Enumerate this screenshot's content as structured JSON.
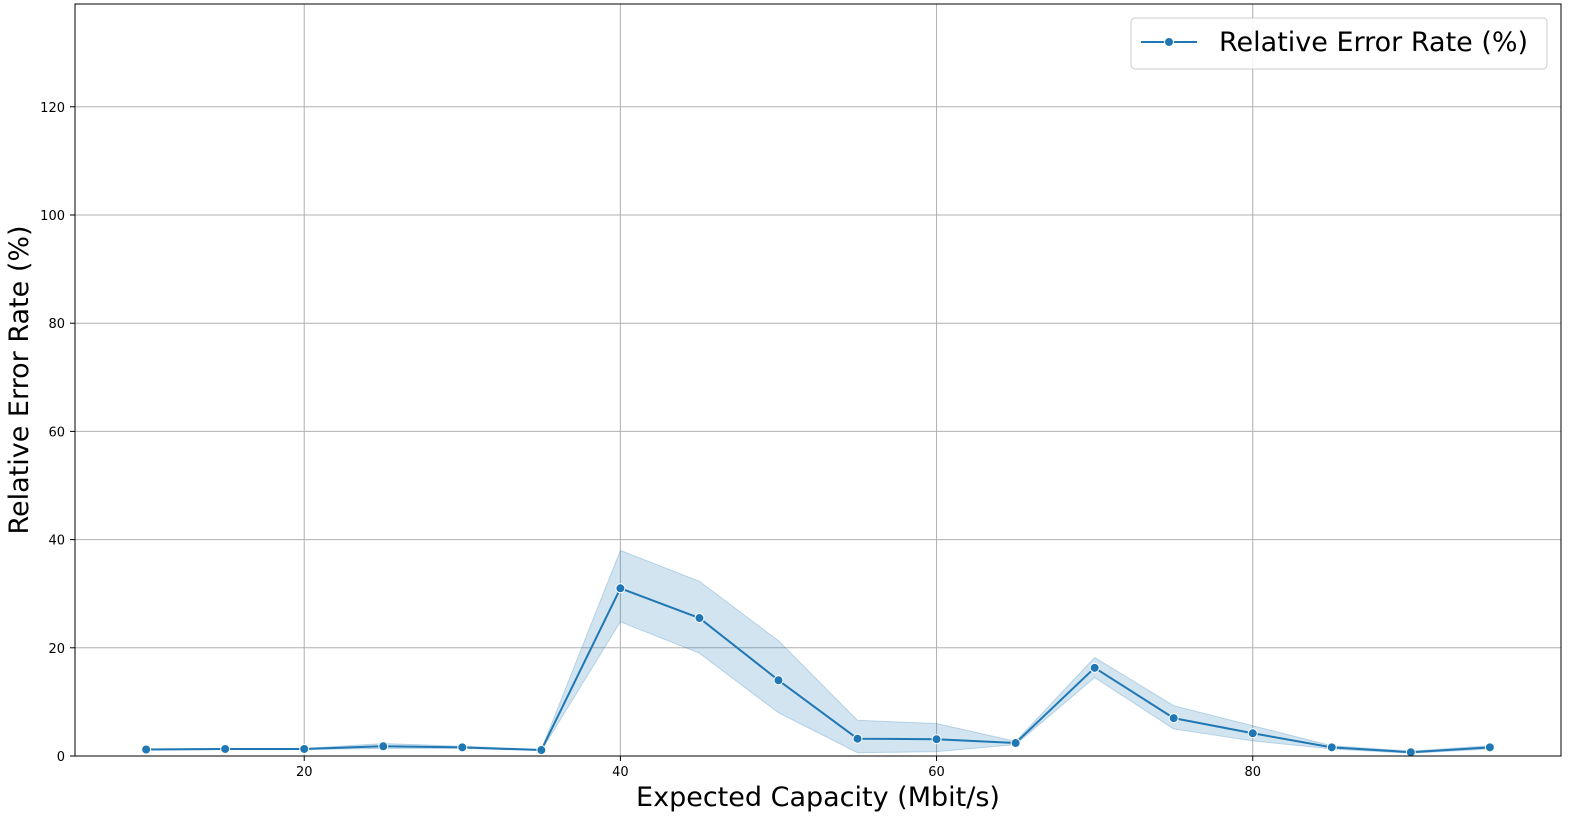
{
  "chart_data": {
    "type": "line",
    "xlabel": "Expected Capacity (Mbit/s)",
    "ylabel": "Relative Error Rate (%)",
    "xlim": [
      5.5,
      99.5
    ],
    "ylim": [
      0,
      139
    ],
    "xticks": [
      20,
      40,
      60,
      80
    ],
    "yticks": [
      0,
      20,
      40,
      60,
      80,
      100,
      120
    ],
    "grid": true,
    "legend_position": "top-right",
    "colors": {
      "line": "#1f77b4",
      "band": "#1f77b4",
      "grid": "#b0b0b0"
    },
    "series": [
      {
        "name": "Relative Error Rate (%)",
        "x": [
          10,
          15,
          20,
          25,
          30,
          35,
          40,
          45,
          50,
          55,
          60,
          65,
          70,
          75,
          80,
          85,
          90,
          95
        ],
        "y": [
          1.2,
          1.3,
          1.3,
          1.8,
          1.6,
          1.1,
          31.0,
          25.5,
          14.0,
          3.2,
          3.1,
          2.4,
          16.3,
          7.0,
          4.2,
          1.6,
          0.7,
          1.6
        ],
        "ci_low": [
          1.1,
          1.2,
          1.2,
          1.4,
          1.4,
          1.0,
          24.8,
          19.0,
          8.0,
          0.6,
          0.8,
          2.1,
          14.5,
          5.0,
          2.8,
          1.3,
          0.5,
          1.3
        ],
        "ci_high": [
          1.3,
          1.4,
          1.4,
          2.3,
          1.8,
          1.2,
          38.0,
          32.3,
          21.3,
          6.6,
          6.0,
          2.7,
          18.2,
          9.3,
          5.6,
          1.9,
          0.9,
          1.9
        ]
      }
    ]
  }
}
